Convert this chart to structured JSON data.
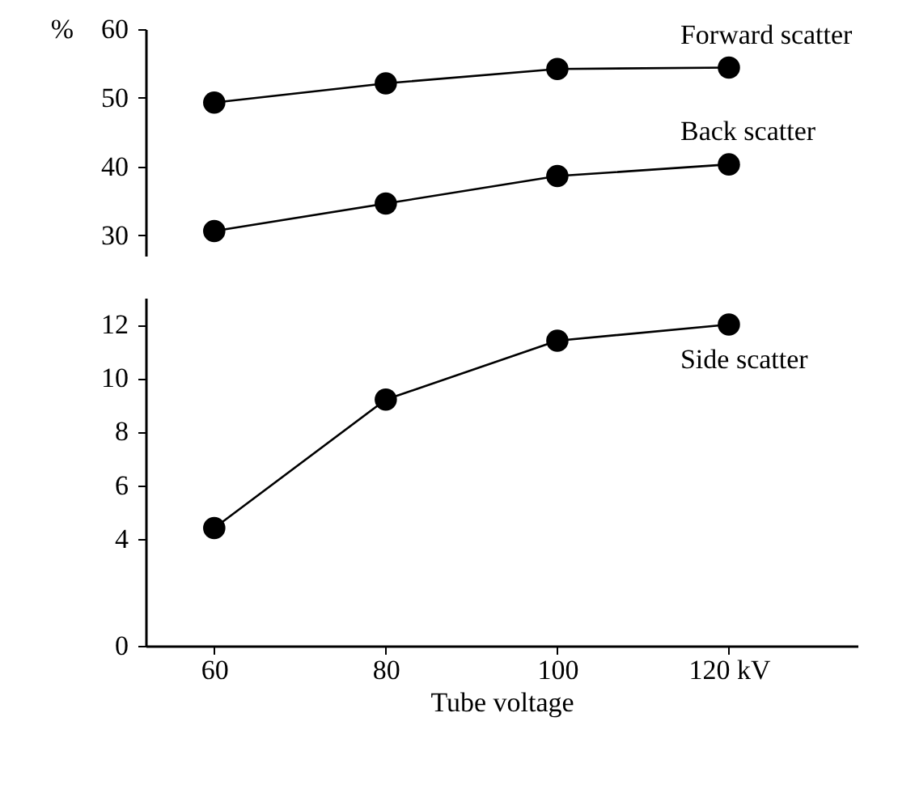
{
  "chart_data": [
    {
      "type": "line",
      "ylabel": "%",
      "x": [
        60,
        80,
        100,
        120
      ],
      "ylim": [
        27,
        60
      ],
      "yticks": [
        30,
        40,
        50,
        60
      ],
      "tick_labels": "y",
      "marker": "circle",
      "grid": false,
      "series": [
        {
          "name": "Forward scatter",
          "color": "#000000",
          "values": [
            49.3,
            52.1,
            54.2,
            54.4
          ]
        },
        {
          "name": "Back scatter",
          "color": "#000000",
          "values": [
            30.6,
            34.6,
            38.6,
            40.3
          ]
        }
      ]
    },
    {
      "type": "line",
      "xlabel": "Tube voltage",
      "x": [
        60,
        80,
        100,
        120
      ],
      "xlim": [
        52,
        135
      ],
      "xticks": [
        60,
        80,
        100,
        {
          "value": 120,
          "label": "120 kV"
        }
      ],
      "ylim": [
        0,
        13
      ],
      "yticks": [
        0,
        4,
        6,
        8,
        10,
        12
      ],
      "marker": "circle",
      "grid": false,
      "series": [
        {
          "name": "Side scatter",
          "color": "#000000",
          "values": [
            4.4,
            9.2,
            11.4,
            12.0
          ]
        }
      ]
    }
  ]
}
